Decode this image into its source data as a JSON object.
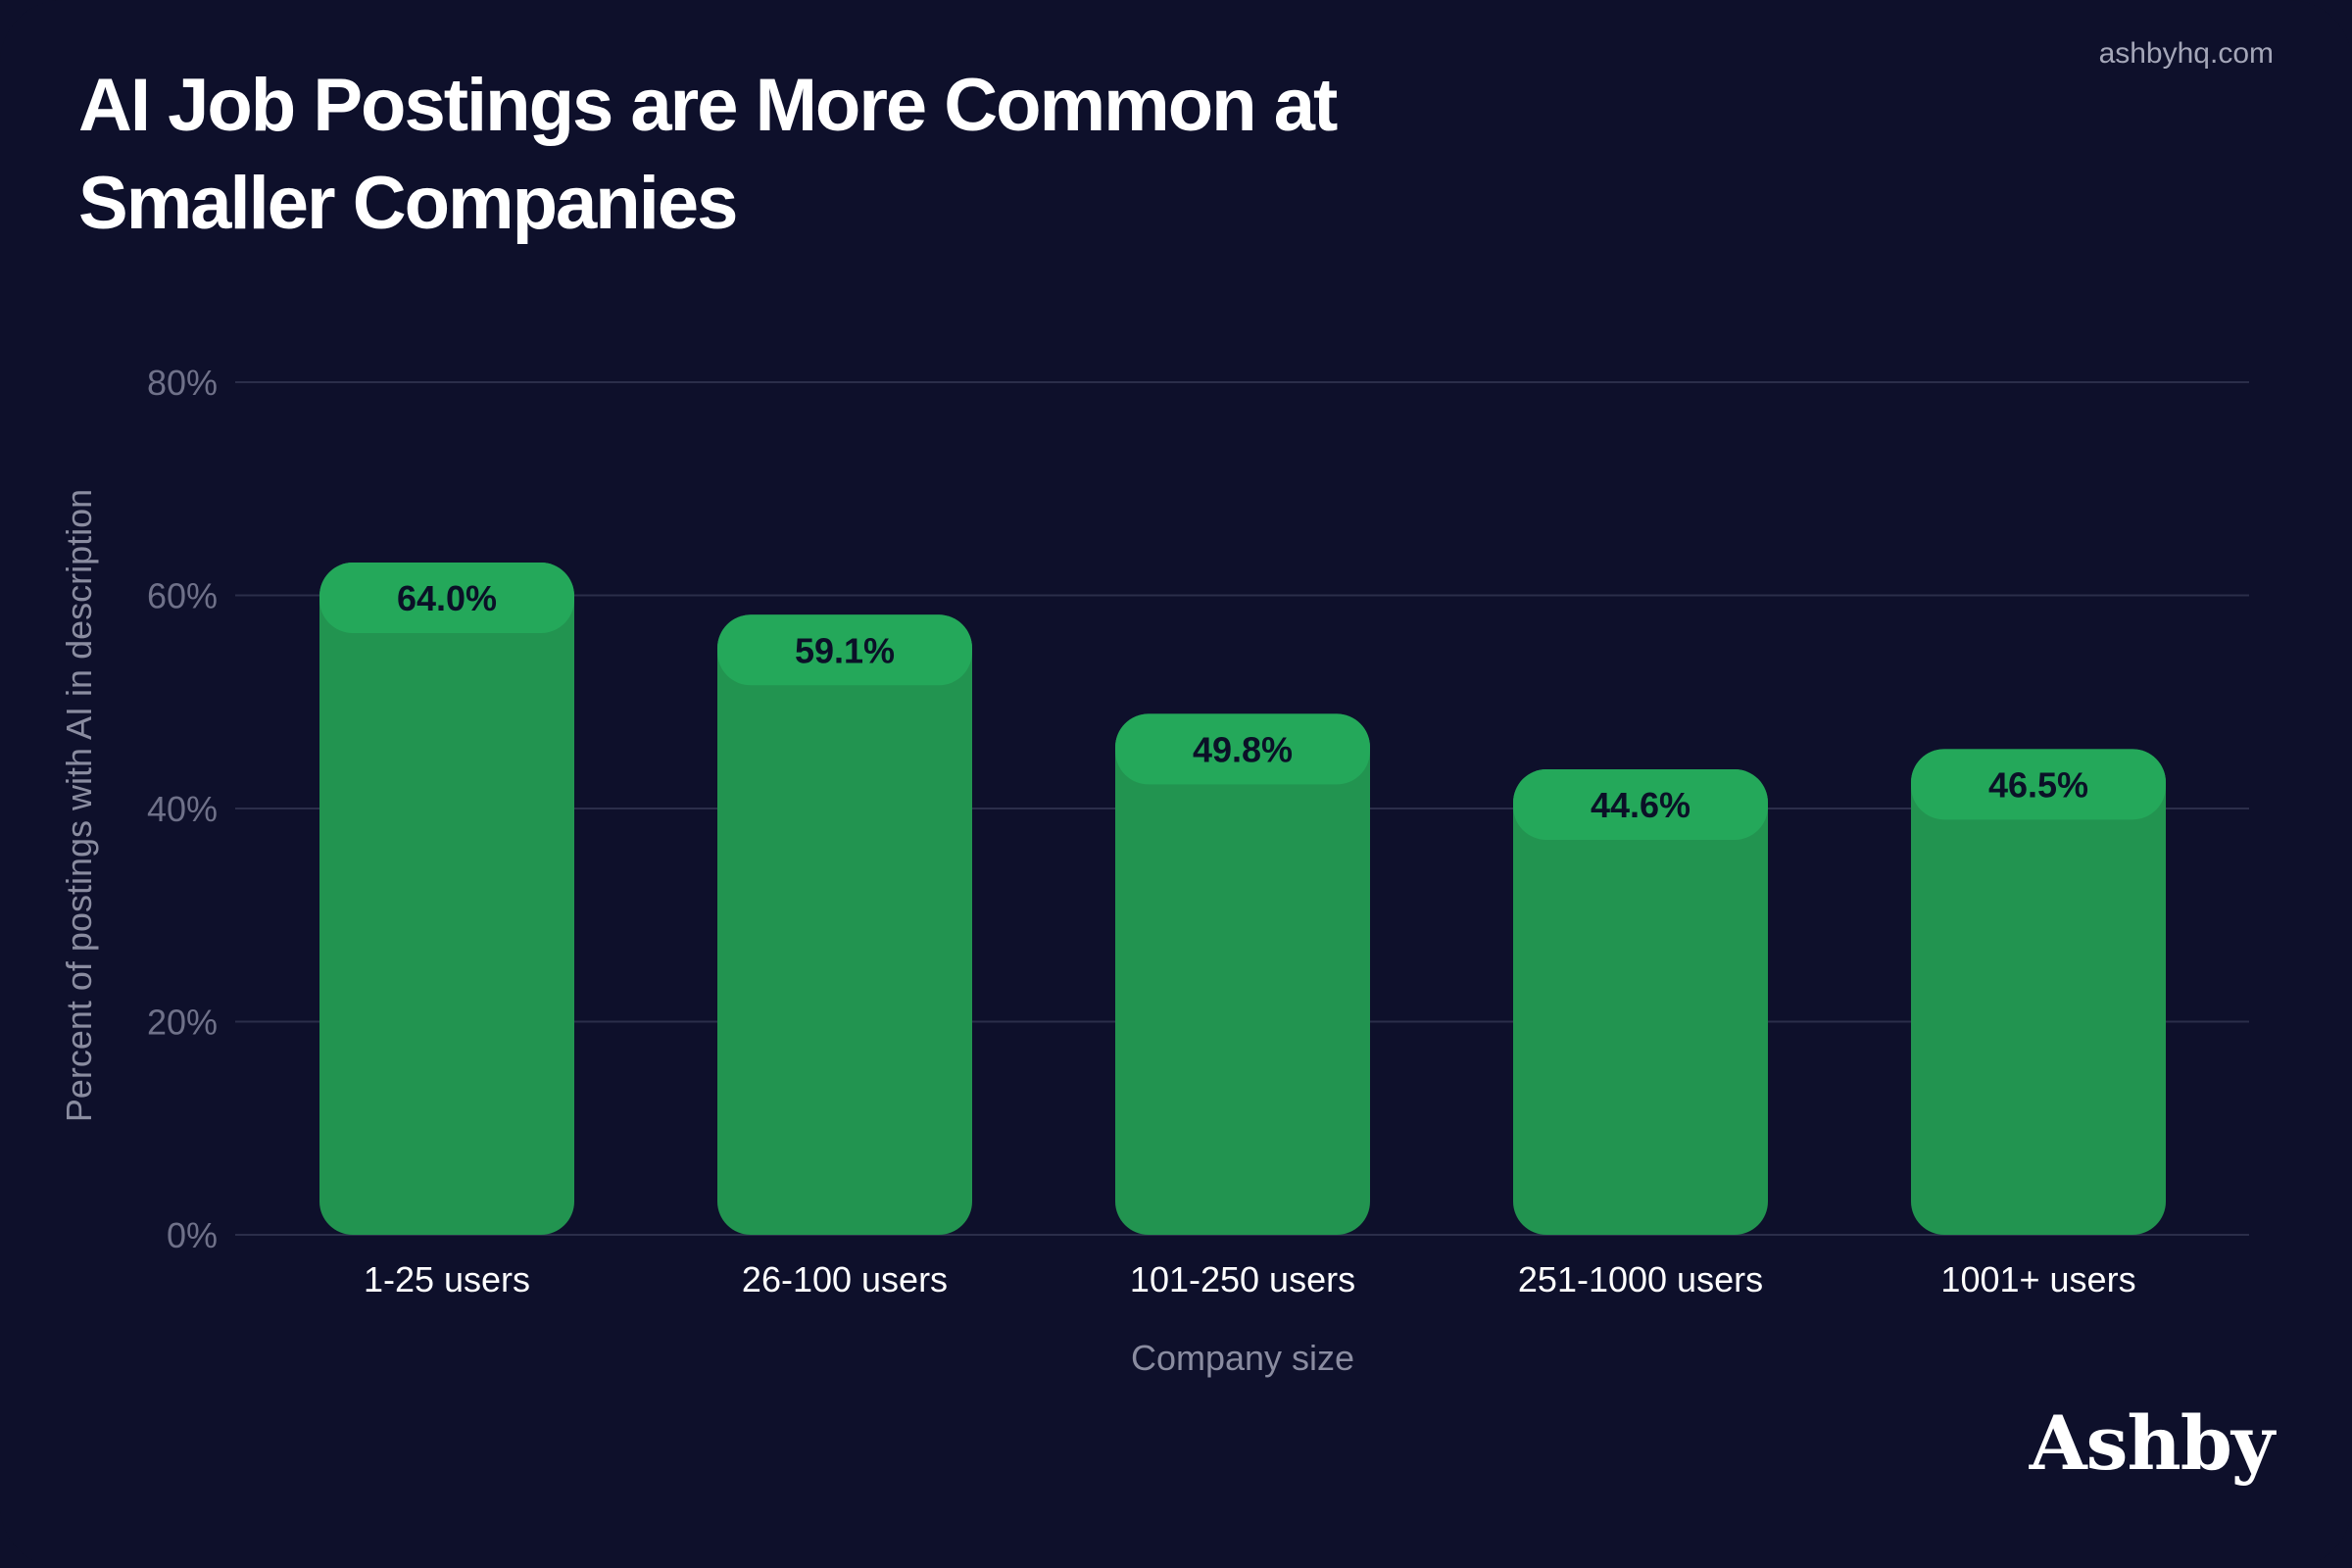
{
  "header": {
    "title": "AI Job Postings are More Common at Smaller Companies",
    "source": "ashbyhq.com"
  },
  "brand": {
    "logo_text": "Ashby"
  },
  "colors": {
    "background": "#0e102b",
    "bar": "#229450",
    "bar_cap": "#24a85a",
    "grid": "#2b2e4a"
  },
  "chart_data": {
    "type": "bar",
    "categories": [
      "1-25 users",
      "26-100 users",
      "101-250 users",
      "251-1000 users",
      "1001+ users"
    ],
    "values": [
      64.0,
      59.1,
      49.8,
      44.6,
      46.5
    ],
    "value_labels": [
      "64.0%",
      "59.1%",
      "49.8%",
      "44.6%",
      "46.5%"
    ],
    "xlabel": "Company size",
    "ylabel": "Percent of postings with AI in description",
    "ylim": [
      0,
      80
    ],
    "yticks": [
      0,
      20,
      40,
      60,
      80
    ],
    "ytick_labels": [
      "0%",
      "20%",
      "40%",
      "60%",
      "80%"
    ],
    "grid": true,
    "legend": "none"
  }
}
